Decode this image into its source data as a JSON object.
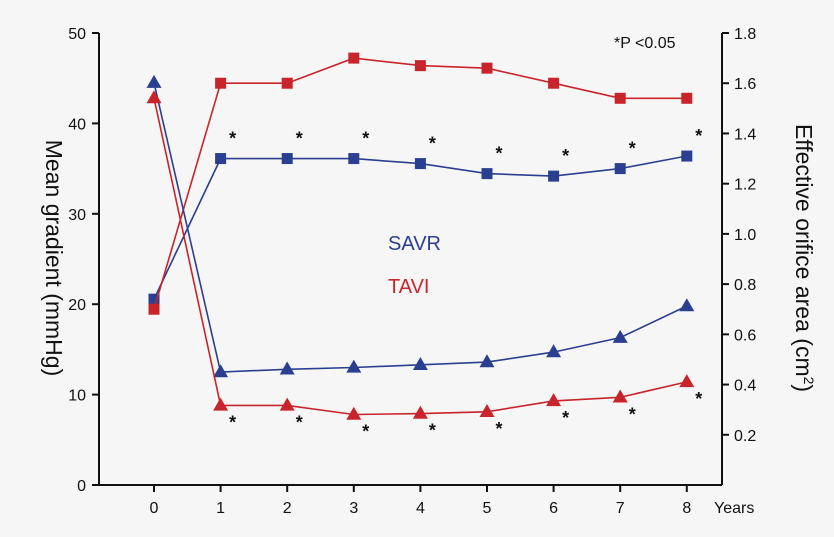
{
  "chart_data": {
    "type": "line",
    "x": [
      0,
      1,
      2,
      3,
      4,
      5,
      6,
      7,
      8
    ],
    "x_tick_labels": [
      "0",
      "1",
      "2",
      "3",
      "4",
      "5",
      "6",
      "7",
      "8"
    ],
    "xlabel": "Years",
    "ylabel_left": "Mean gradient (mmHg)",
    "ylabel_right_main": "Effective orifice area (cm",
    "ylabel_right_sup": "2",
    "ylabel_right_close": ")",
    "ylim_left": [
      0,
      50
    ],
    "ylim_right": [
      0,
      1.8
    ],
    "yticks_left": [
      0,
      10,
      20,
      30,
      40,
      50
    ],
    "yticks_right": [
      0.2,
      0.4,
      0.6,
      0.8,
      1.0,
      1.2,
      1.4,
      1.6,
      1.8
    ],
    "ytick_labels_left": [
      "0",
      "10",
      "20",
      "30",
      "40",
      "50"
    ],
    "ytick_labels_right": [
      "0.2",
      "0.4",
      "0.6",
      "0.8",
      "1.0",
      "1.2",
      "1.4",
      "1.6",
      "1.8"
    ],
    "grid": false,
    "annotation": "*P <0.05",
    "legend": [
      {
        "label": "SAVR",
        "color": "#2a3f8f"
      },
      {
        "label": "TAVI",
        "color": "#c8242b"
      }
    ],
    "series": [
      {
        "group": "SAVR",
        "metric": "Effective orifice area",
        "axis": "right",
        "marker": "square",
        "color": "#2a3f8f",
        "values": [
          0.74,
          1.3,
          1.3,
          1.3,
          1.28,
          1.24,
          1.23,
          1.26,
          1.31
        ]
      },
      {
        "group": "TAVI",
        "metric": "Effective orifice area",
        "axis": "right",
        "marker": "square",
        "color": "#c8242b",
        "values": [
          0.7,
          1.6,
          1.6,
          1.7,
          1.67,
          1.66,
          1.6,
          1.54,
          1.54
        ]
      },
      {
        "group": "SAVR",
        "metric": "Mean gradient",
        "axis": "left",
        "marker": "triangle",
        "color": "#2a3f8f",
        "values": [
          44.5,
          12.5,
          12.8,
          13.0,
          13.3,
          13.6,
          14.7,
          16.3,
          19.8
        ]
      },
      {
        "group": "TAVI",
        "metric": "Mean gradient",
        "axis": "left",
        "marker": "triangle",
        "color": "#c8242b",
        "values": [
          42.8,
          8.8,
          8.8,
          7.8,
          7.9,
          8.1,
          9.3,
          9.7,
          11.4
        ]
      }
    ],
    "significance_upper": [
      1,
      2,
      3,
      4,
      5,
      6,
      7,
      8
    ],
    "significance_lower": [
      1,
      2,
      3,
      4,
      5,
      6,
      7,
      8
    ],
    "significance_symbol": "*"
  }
}
